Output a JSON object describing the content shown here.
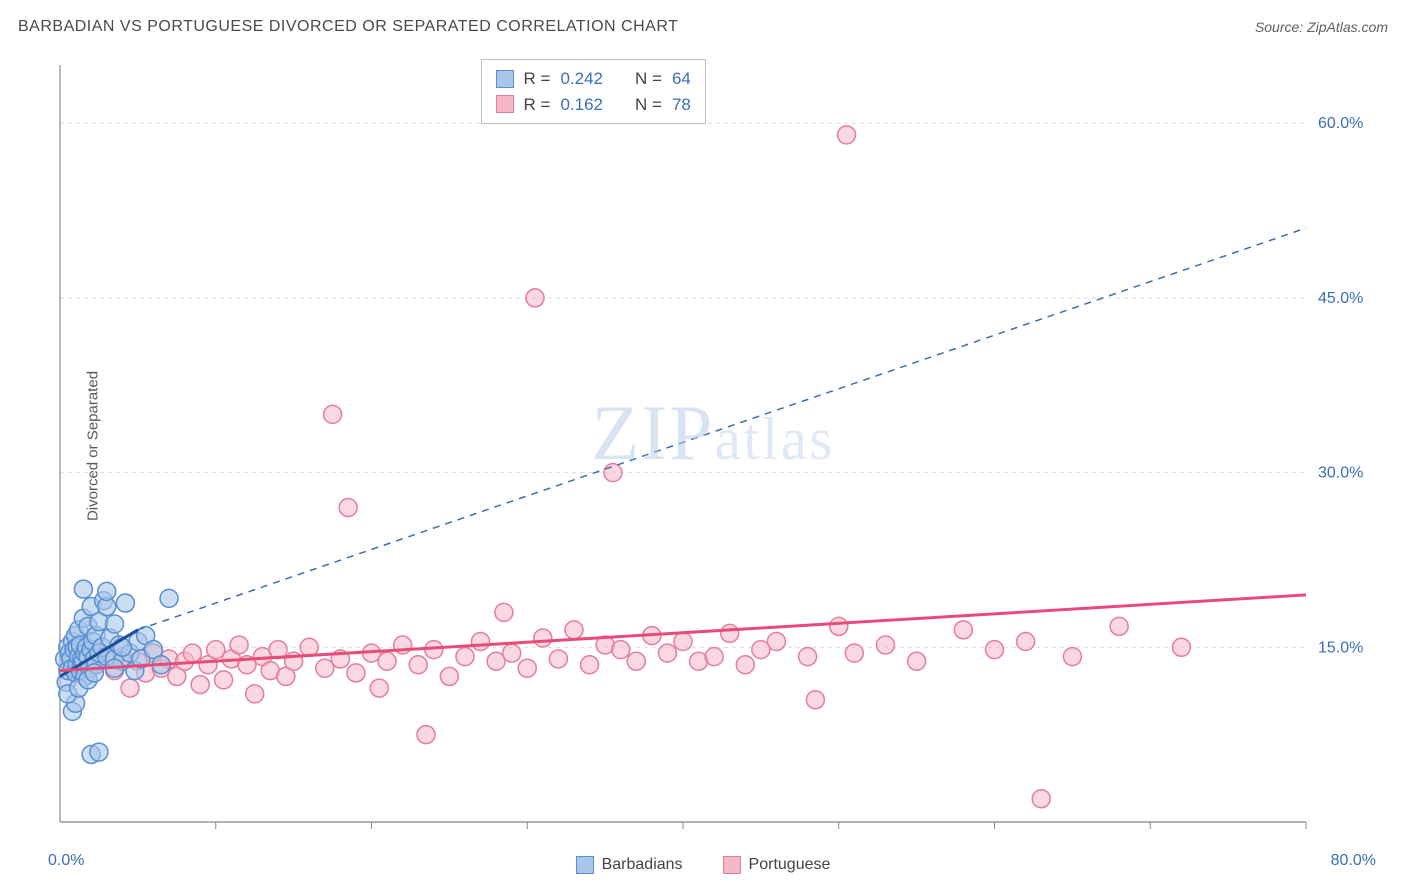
{
  "title": "BARBADIAN VS PORTUGUESE DIVORCED OR SEPARATED CORRELATION CHART",
  "source": "Source: ZipAtlas.com",
  "watermark_a": "ZIP",
  "watermark_b": "atlas",
  "y_axis_label": "Divorced or Separated",
  "x_origin_label": "0.0%",
  "x_max_label": "80.0%",
  "y_grid_labels": [
    "15.0%",
    "30.0%",
    "45.0%",
    "60.0%"
  ],
  "chart": {
    "type": "scatter",
    "xlim": [
      0,
      80
    ],
    "ylim": [
      0,
      65
    ],
    "x_ticks": [
      10,
      20,
      30,
      40,
      50,
      60,
      70,
      80
    ],
    "y_grid": [
      15,
      30,
      45,
      60
    ],
    "background_color": "#ffffff",
    "grid_color": "#dcdcdc",
    "axis_color": "#888888",
    "y_label_color": "#3b6fb5",
    "marker_radius": 9,
    "marker_stroke_width": 1.5,
    "series": [
      {
        "name": "Barbadians",
        "fill_color": "#a8c6ea",
        "stroke_color": "#5a8fd0",
        "fill_opacity": 0.6,
        "trend_color": "#1f4e9c",
        "trend_width": 3,
        "trend_dash_color": "#3b6fb5",
        "trend": {
          "x1": 0,
          "y1": 12.5,
          "x2": 5,
          "y2": 16.5
        },
        "trend_dash": {
          "x1": 5,
          "y1": 16.5,
          "x2": 80,
          "y2": 51
        },
        "stats": {
          "R": "0.242",
          "N": "64"
        },
        "points": [
          [
            0.3,
            14
          ],
          [
            0.4,
            12
          ],
          [
            0.5,
            15
          ],
          [
            0.5,
            13
          ],
          [
            0.6,
            14.5
          ],
          [
            0.7,
            14
          ],
          [
            0.8,
            13.2
          ],
          [
            0.8,
            15.5
          ],
          [
            0.9,
            14.8
          ],
          [
            1.0,
            12.8
          ],
          [
            1.0,
            16
          ],
          [
            1.1,
            13.5
          ],
          [
            1.1,
            15
          ],
          [
            1.2,
            14.2
          ],
          [
            1.2,
            16.5
          ],
          [
            1.3,
            13
          ],
          [
            1.3,
            15.2
          ],
          [
            1.4,
            14
          ],
          [
            1.5,
            17.5
          ],
          [
            1.5,
            13.8
          ],
          [
            1.6,
            14.5
          ],
          [
            1.6,
            12.5
          ],
          [
            1.7,
            15
          ],
          [
            1.8,
            14.2
          ],
          [
            1.8,
            16.8
          ],
          [
            1.9,
            13.2
          ],
          [
            2.0,
            14.8
          ],
          [
            2.0,
            18.5
          ],
          [
            2.1,
            15.5
          ],
          [
            2.2,
            14
          ],
          [
            2.3,
            13.5
          ],
          [
            2.3,
            16
          ],
          [
            2.5,
            17.2
          ],
          [
            2.5,
            14.5
          ],
          [
            2.7,
            15
          ],
          [
            2.8,
            19
          ],
          [
            3.0,
            14.2
          ],
          [
            3.0,
            18.5
          ],
          [
            3.2,
            15.8
          ],
          [
            3.5,
            14
          ],
          [
            3.5,
            17
          ],
          [
            3.8,
            15.2
          ],
          [
            4.0,
            13.8
          ],
          [
            4.2,
            18.8
          ],
          [
            4.5,
            14.5
          ],
          [
            4.8,
            13
          ],
          [
            5.0,
            15.5
          ],
          [
            5.2,
            14
          ],
          [
            5.5,
            16
          ],
          [
            6.0,
            14.8
          ],
          [
            6.5,
            13.5
          ],
          [
            7.0,
            19.2
          ],
          [
            0.8,
            9.5
          ],
          [
            1.0,
            10.2
          ],
          [
            1.5,
            20
          ],
          [
            2.0,
            5.8
          ],
          [
            2.5,
            6.0
          ],
          [
            3.0,
            19.8
          ],
          [
            0.5,
            11
          ],
          [
            1.2,
            11.5
          ],
          [
            1.8,
            12.2
          ],
          [
            2.2,
            12.8
          ],
          [
            3.5,
            13.2
          ],
          [
            4.0,
            15
          ]
        ]
      },
      {
        "name": "Portuguese",
        "fill_color": "#f5b8c8",
        "stroke_color": "#e57d9e",
        "fill_opacity": 0.55,
        "trend_color": "#e84b7a",
        "trend_width": 3,
        "trend": {
          "x1": 0,
          "y1": 13,
          "x2": 80,
          "y2": 19.5
        },
        "stats": {
          "R": "0.162",
          "N": "78"
        },
        "points": [
          [
            2,
            13.5
          ],
          [
            3,
            14
          ],
          [
            3.5,
            13
          ],
          [
            4,
            14.2
          ],
          [
            4.5,
            11.5
          ],
          [
            5,
            13.8
          ],
          [
            5.5,
            12.8
          ],
          [
            6,
            14.5
          ],
          [
            6.5,
            13.2
          ],
          [
            7,
            14
          ],
          [
            7.5,
            12.5
          ],
          [
            8,
            13.8
          ],
          [
            8.5,
            14.5
          ],
          [
            9,
            11.8
          ],
          [
            9.5,
            13.5
          ],
          [
            10,
            14.8
          ],
          [
            10.5,
            12.2
          ],
          [
            11,
            14
          ],
          [
            11.5,
            15.2
          ],
          [
            12,
            13.5
          ],
          [
            12.5,
            11
          ],
          [
            13,
            14.2
          ],
          [
            13.5,
            13
          ],
          [
            14,
            14.8
          ],
          [
            14.5,
            12.5
          ],
          [
            15,
            13.8
          ],
          [
            16,
            15
          ],
          [
            17,
            13.2
          ],
          [
            17.5,
            35
          ],
          [
            18,
            14
          ],
          [
            18.5,
            27
          ],
          [
            19,
            12.8
          ],
          [
            20,
            14.5
          ],
          [
            20.5,
            11.5
          ],
          [
            21,
            13.8
          ],
          [
            22,
            15.2
          ],
          [
            23,
            13.5
          ],
          [
            23.5,
            7.5
          ],
          [
            24,
            14.8
          ],
          [
            25,
            12.5
          ],
          [
            26,
            14.2
          ],
          [
            27,
            15.5
          ],
          [
            28,
            13.8
          ],
          [
            28.5,
            18
          ],
          [
            29,
            14.5
          ],
          [
            30,
            13.2
          ],
          [
            30.5,
            45
          ],
          [
            31,
            15.8
          ],
          [
            32,
            14
          ],
          [
            33,
            16.5
          ],
          [
            34,
            13.5
          ],
          [
            35,
            15.2
          ],
          [
            35.5,
            30
          ],
          [
            36,
            14.8
          ],
          [
            37,
            13.8
          ],
          [
            38,
            16
          ],
          [
            39,
            14.5
          ],
          [
            40,
            15.5
          ],
          [
            41,
            13.8
          ],
          [
            42,
            14.2
          ],
          [
            43,
            16.2
          ],
          [
            44,
            13.5
          ],
          [
            45,
            14.8
          ],
          [
            46,
            15.5
          ],
          [
            48,
            14.2
          ],
          [
            48.5,
            10.5
          ],
          [
            50,
            16.8
          ],
          [
            50.5,
            59
          ],
          [
            51,
            14.5
          ],
          [
            53,
            15.2
          ],
          [
            55,
            13.8
          ],
          [
            58,
            16.5
          ],
          [
            60,
            14.8
          ],
          [
            62,
            15.5
          ],
          [
            63,
            2
          ],
          [
            65,
            14.2
          ],
          [
            68,
            16.8
          ],
          [
            72,
            15
          ]
        ]
      }
    ]
  },
  "stats_box": {
    "r_label": "R =",
    "n_label": "N ="
  },
  "legend": {
    "series1": "Barbadians",
    "series2": "Portuguese"
  }
}
